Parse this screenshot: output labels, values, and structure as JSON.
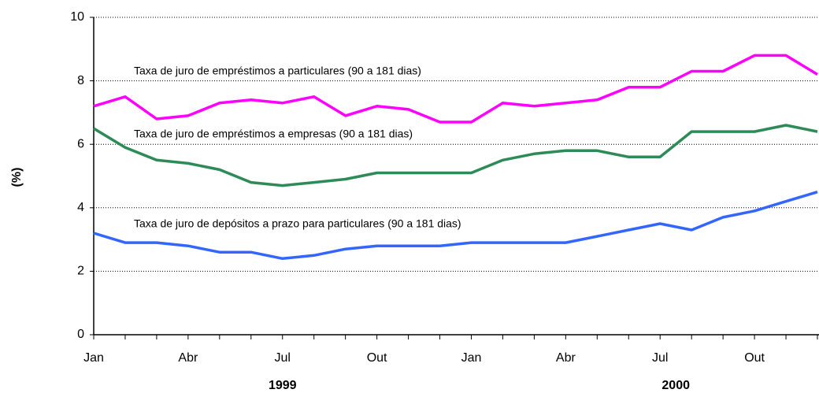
{
  "chart_data": {
    "type": "line",
    "y_label": "(%)",
    "categories": [
      "Jan",
      null,
      null,
      "Abr",
      null,
      null,
      "Jul",
      null,
      null,
      "Out",
      null,
      null,
      "Jan",
      null,
      null,
      "Abr",
      null,
      null,
      "Jul",
      null,
      null,
      "Out",
      null,
      null
    ],
    "year_labels": [
      "1999",
      "2000"
    ],
    "series": [
      {
        "name": "Taxa de juro de empréstimos a particulares (90 a 181 dias)",
        "color": "#ff00ff",
        "values": [
          7.2,
          7.5,
          6.8,
          6.9,
          7.3,
          7.4,
          7.3,
          7.5,
          6.9,
          7.2,
          7.1,
          6.7,
          6.7,
          7.3,
          7.2,
          7.3,
          7.4,
          7.8,
          7.8,
          8.3,
          8.3,
          8.8,
          8.8,
          8.2
        ]
      },
      {
        "name": "Taxa de juro de empréstimos a empresas (90 a 181 dias)",
        "color": "#2e8b57",
        "values": [
          6.5,
          5.9,
          5.5,
          5.4,
          5.2,
          4.8,
          4.7,
          4.8,
          4.9,
          5.1,
          5.1,
          5.1,
          5.1,
          5.5,
          5.7,
          5.8,
          5.8,
          5.6,
          5.6,
          6.4,
          6.4,
          6.4,
          6.6,
          6.4
        ]
      },
      {
        "name": "Taxa de juro de depósitos a prazo para particulares (90 a 181 dias)",
        "color": "#3366ff",
        "values": [
          3.2,
          2.9,
          2.9,
          2.8,
          2.6,
          2.6,
          2.4,
          2.5,
          2.7,
          2.8,
          2.8,
          2.8,
          2.9,
          2.9,
          2.9,
          2.9,
          3.1,
          3.3,
          3.5,
          3.3,
          3.7,
          3.9,
          4.2,
          4.5
        ]
      }
    ],
    "ylim": [
      0,
      10
    ],
    "yticks": [
      0,
      2,
      4,
      6,
      8,
      10
    ],
    "grid": true
  }
}
